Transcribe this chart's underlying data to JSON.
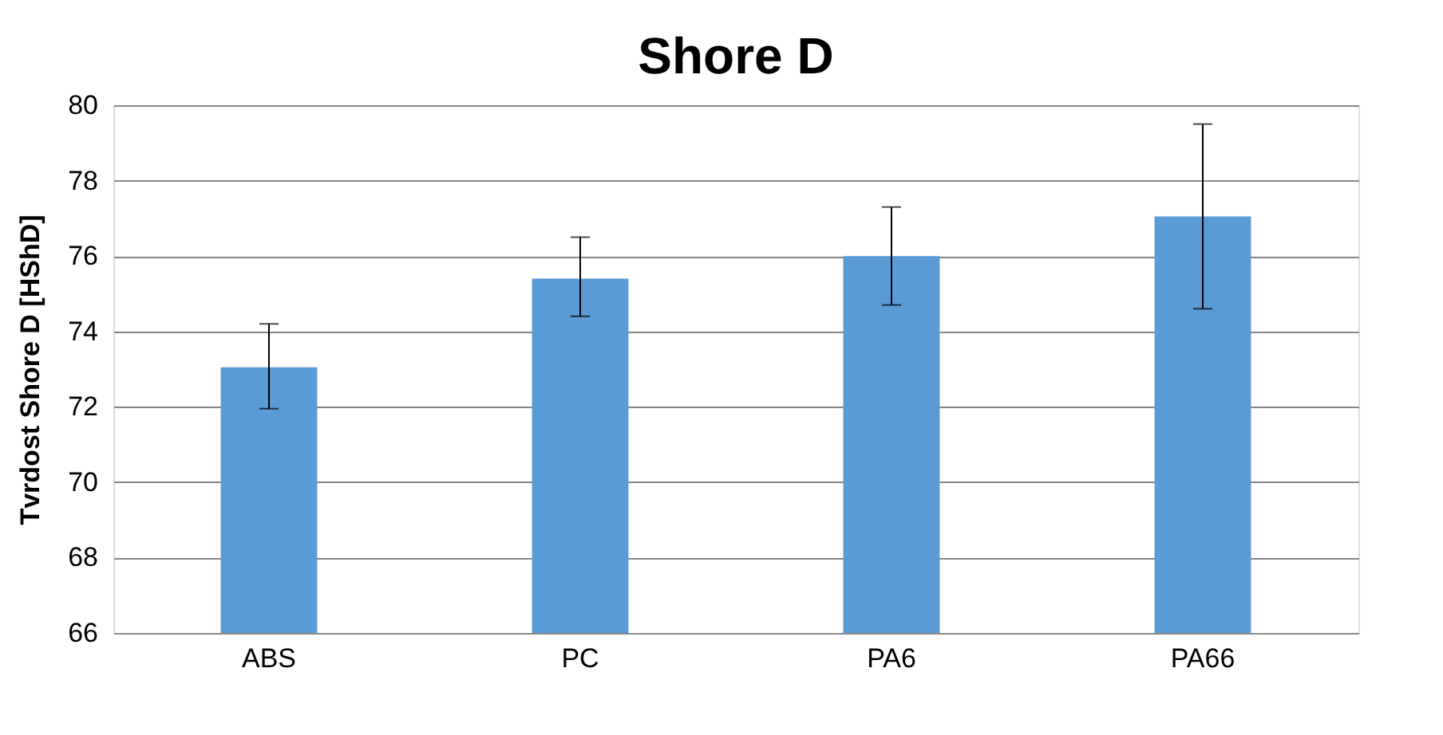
{
  "chart_data": {
    "type": "bar",
    "title": "Shore D",
    "ylabel": "Tvrdost Shore D [HShD]",
    "categories": [
      "ABS",
      "PC",
      "PA6",
      "PA66"
    ],
    "values": [
      73.05,
      75.4,
      76.0,
      77.05
    ],
    "errors": [
      [
        71.95,
        74.2
      ],
      [
        74.4,
        76.5
      ],
      [
        74.7,
        77.3
      ],
      [
        74.6,
        79.5
      ]
    ],
    "color": "#5b9bd5",
    "ylim": [
      66,
      80
    ],
    "yticks": [
      66,
      68,
      70,
      72,
      74,
      76,
      78,
      80
    ],
    "grid": "y"
  }
}
